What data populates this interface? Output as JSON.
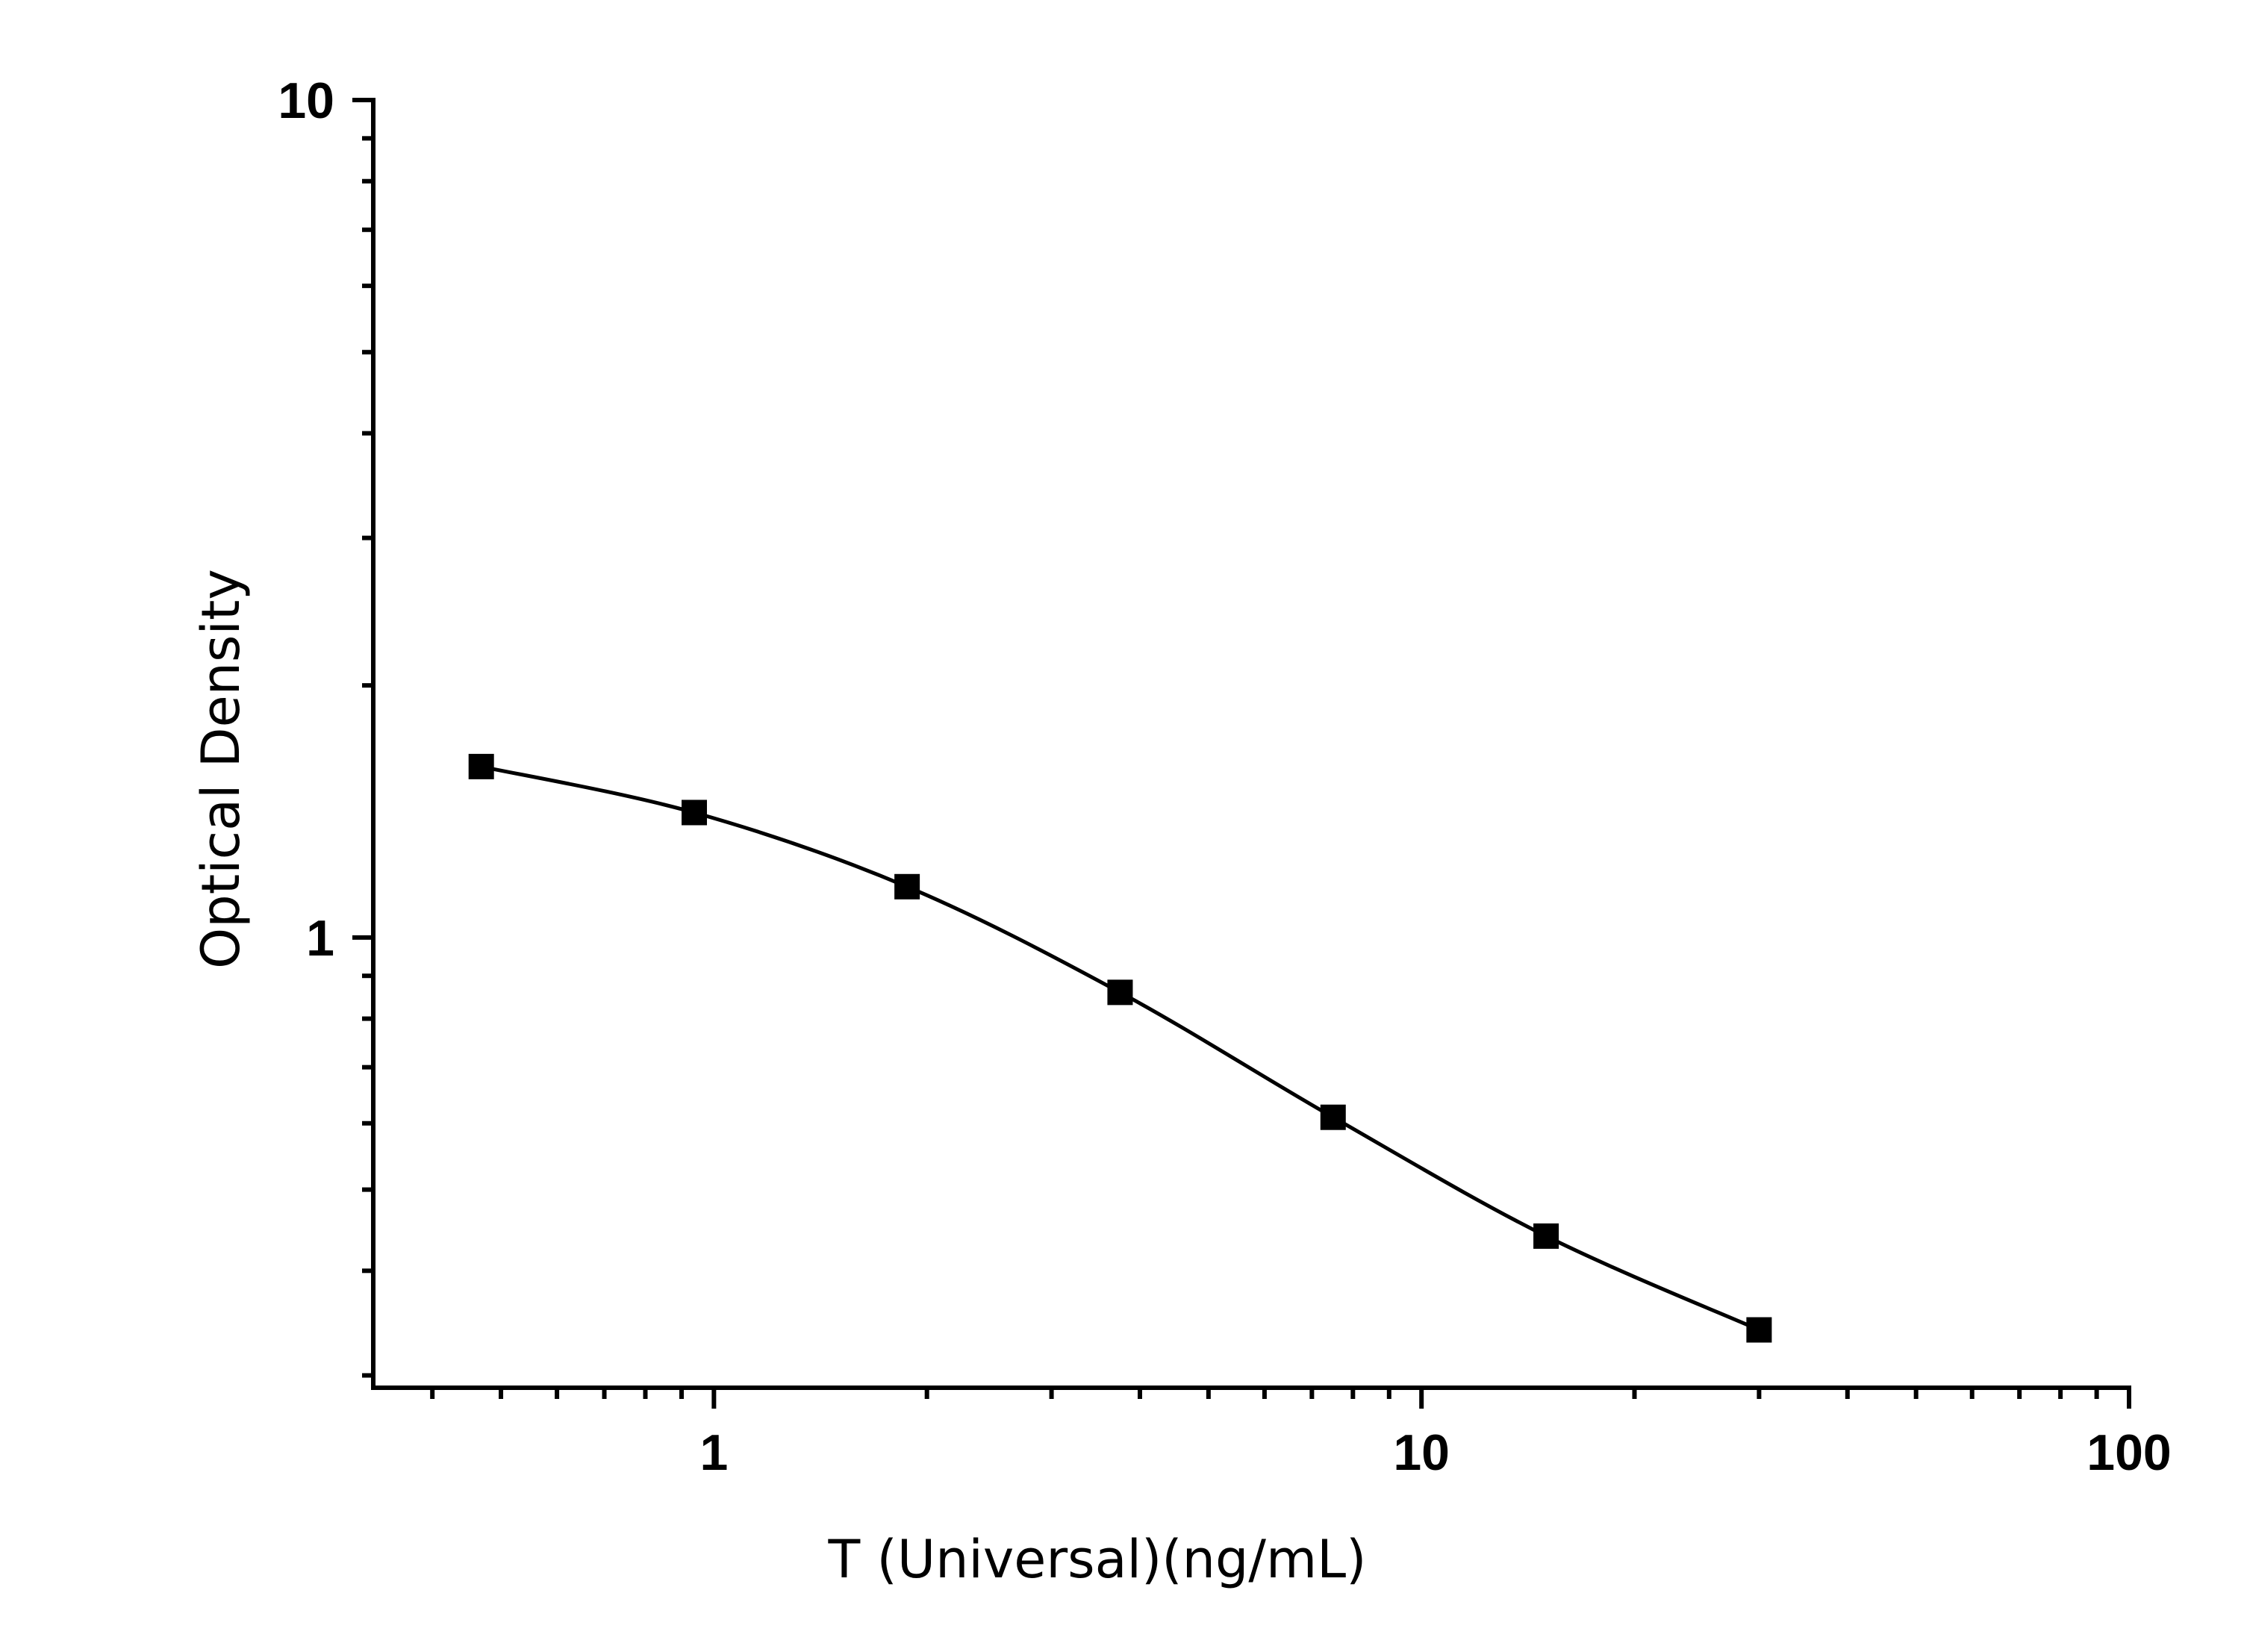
{
  "chart_data": {
    "type": "scatter",
    "title": "",
    "xlabel": "T (Universal)(ng/mL)",
    "ylabel": "Optical Density",
    "x_scale": "log",
    "y_scale": "log",
    "xlim": [
      0.33,
      100
    ],
    "ylim": [
      0.29,
      10
    ],
    "x_tick_labels": [
      "1",
      "10",
      "100"
    ],
    "y_tick_labels": [
      "1",
      "10"
    ],
    "grid": false,
    "legend": "none",
    "marker": "square",
    "color": "#000000",
    "series": [
      {
        "x": [
          0.469,
          0.938,
          1.875,
          3.75,
          7.5,
          15,
          30
        ],
        "y": [
          1.6,
          1.41,
          1.15,
          0.86,
          0.61,
          0.44,
          0.34
        ]
      }
    ],
    "fit_curve": "4-parameter logistic"
  }
}
